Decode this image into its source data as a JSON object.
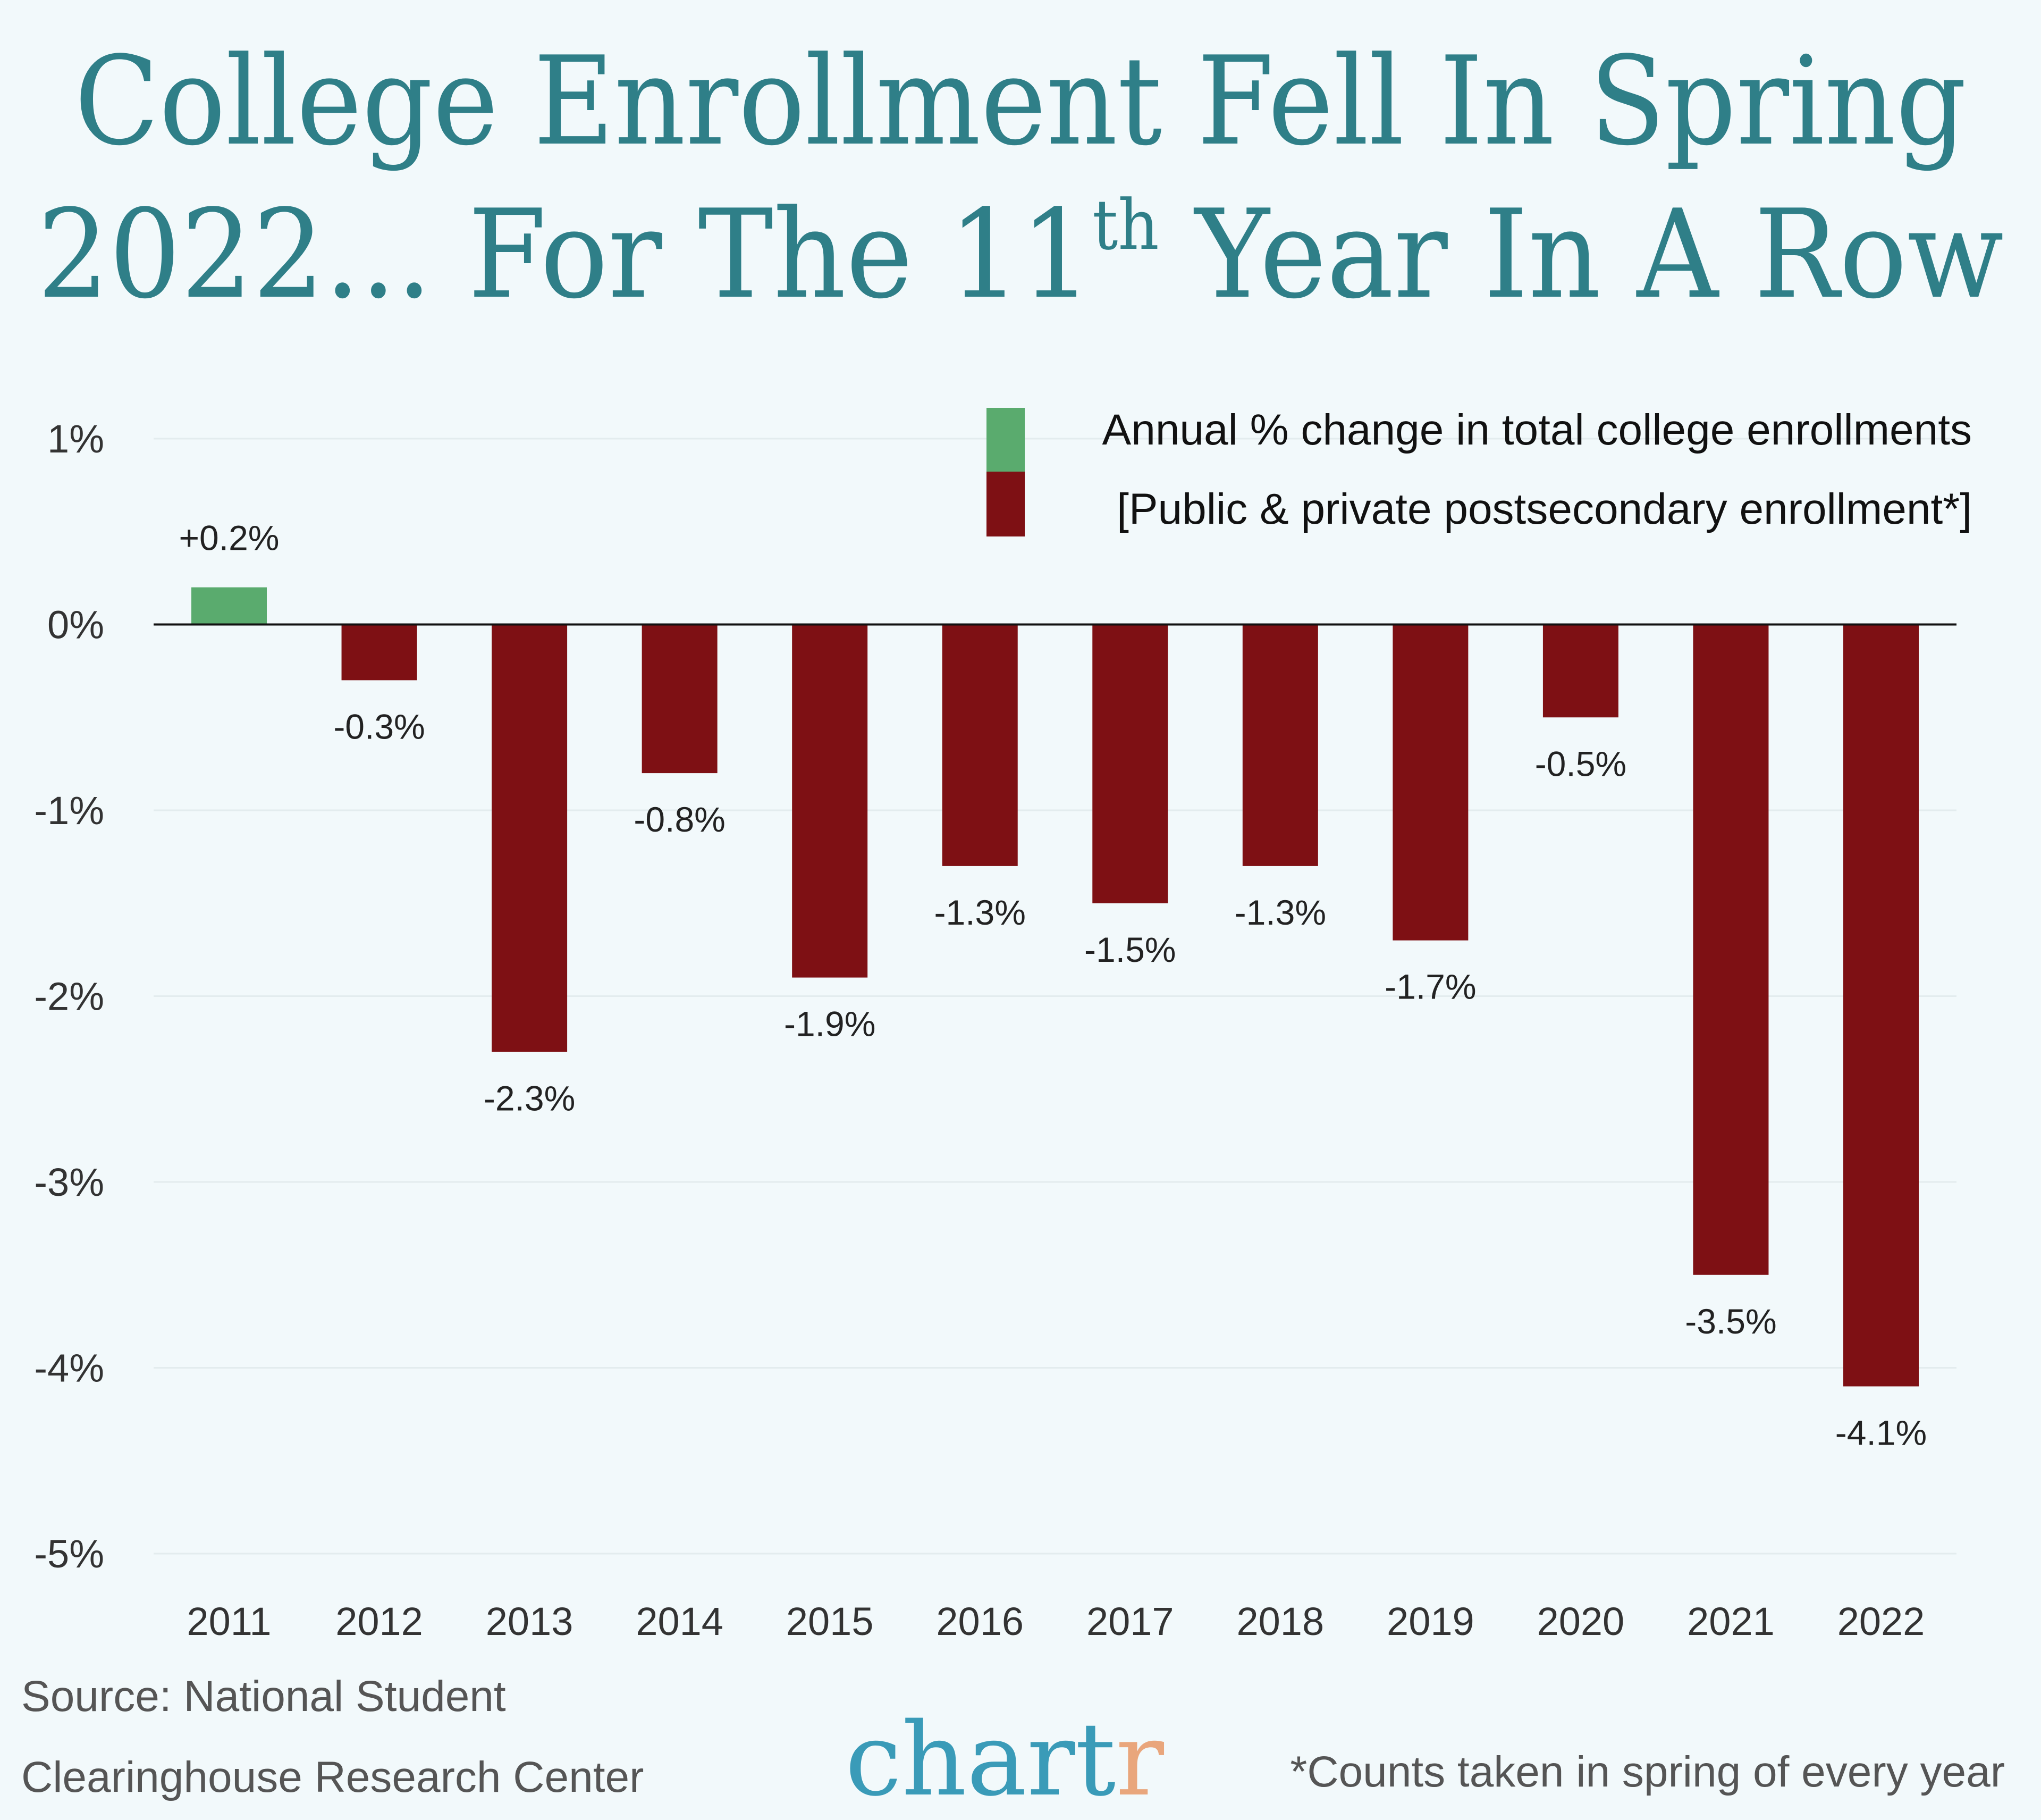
{
  "title": {
    "line1": "College Enrollment Fell In Spring",
    "line2_pre": "2022... For The 11",
    "line2_sup": "th",
    "line2_post": " Year In A Row"
  },
  "chart_data": {
    "type": "bar",
    "title": "College Enrollment Fell In Spring 2022... For The 11th Year In A Row",
    "categories": [
      "2011",
      "2012",
      "2013",
      "2014",
      "2015",
      "2016",
      "2017",
      "2018",
      "2019",
      "2020",
      "2021",
      "2022"
    ],
    "values": [
      0.2,
      -0.3,
      -2.3,
      -0.8,
      -1.9,
      -1.3,
      -1.5,
      -1.3,
      -1.7,
      -0.5,
      -3.5,
      -4.1
    ],
    "data_labels": [
      "+0.2%",
      "-0.3%",
      "-2.3%",
      "-0.8%",
      "-1.9%",
      "-1.3%",
      "-1.5%",
      "-1.3%",
      "-1.7%",
      "-0.5%",
      "-3.5%",
      "-4.1%"
    ],
    "ylim": [
      -5,
      1
    ],
    "yticks": [
      1,
      0,
      -1,
      -2,
      -3,
      -4,
      -5
    ],
    "ytick_labels": [
      "1%",
      "0%",
      "-1%",
      "-2%",
      "-3%",
      "-4%",
      "-5%"
    ],
    "xlabel": "",
    "ylabel": "",
    "grid": true,
    "legend": {
      "placement": "top-right",
      "line1": "Annual % change in total college enrollments",
      "line2": "[Public & private postsecondary enrollment*]"
    },
    "colors": {
      "positive": "#5aab6e",
      "negative": "#7e1014"
    }
  },
  "footer": {
    "source_line1": "Source: National Student",
    "source_line2": "Clearinghouse Research Center",
    "logo_main": "chart",
    "logo_accent": "r",
    "footnote": "*Counts taken in spring of every year"
  },
  "colors": {
    "title": "#2f7f88",
    "logo": "#3a9bb8",
    "logo_accent": "#e9a67c",
    "background": "#f2f9fb"
  }
}
